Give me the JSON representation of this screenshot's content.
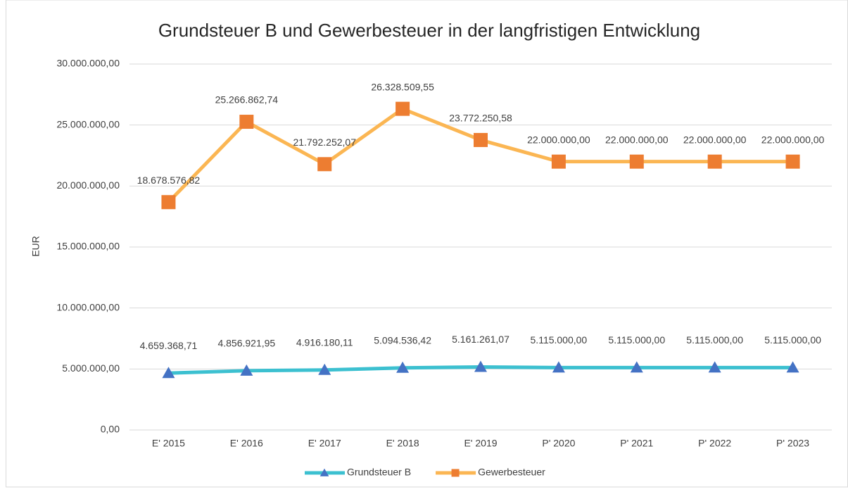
{
  "chart_data": {
    "type": "line",
    "title": "Grundsteuer B und Gewerbesteuer in der langfristigen Entwicklung",
    "y_label": "EUR",
    "categories": [
      "E' 2015",
      "E' 2016",
      "E' 2017",
      "E' 2018",
      "E' 2019",
      "P' 2020",
      "P' 2021",
      "P' 2022",
      "P' 2023"
    ],
    "series": [
      {
        "name": "Grundsteuer B",
        "color": "#3cc0d0",
        "marker": "triangle",
        "marker_color": "#4472c4",
        "values": [
          4659368.71,
          4856921.95,
          4916180.11,
          5094536.42,
          5161261.07,
          5115000,
          5115000,
          5115000,
          5115000
        ],
        "value_labels": [
          "4.659.368,71",
          "4.856.921,95",
          "4.916.180,11",
          "5.094.536,42",
          "5.161.261,07",
          "5.115.000,00",
          "5.115.000,00",
          "5.115.000,00",
          "5.115.000,00"
        ]
      },
      {
        "name": "Gewerbesteuer",
        "color": "#fbb653",
        "marker": "square",
        "marker_color": "#ed7d31",
        "values": [
          18678576.82,
          25266862.74,
          21792252.07,
          26328509.55,
          23772250.58,
          22000000,
          22000000,
          22000000,
          22000000
        ],
        "value_labels": [
          "18.678.576,82",
          "25.266.862,74",
          "21.792.252,07",
          "26.328.509,55",
          "23.772.250,58",
          "22.000.000,00",
          "22.000.000,00",
          "22.000.000,00",
          "22.000.000,00"
        ]
      }
    ],
    "ylim": [
      0,
      30000000
    ],
    "yticks": [
      {
        "value": 0,
        "label": "0,00"
      },
      {
        "value": 5000000,
        "label": "5.000.000,00"
      },
      {
        "value": 10000000,
        "label": "10.000.000,00"
      },
      {
        "value": 15000000,
        "label": "15.000.000,00"
      },
      {
        "value": 20000000,
        "label": "20.000.000,00"
      },
      {
        "value": 25000000,
        "label": "25.000.000,00"
      },
      {
        "value": 30000000,
        "label": "30.000.000,00"
      }
    ],
    "grid": true,
    "legend": "bottom"
  }
}
